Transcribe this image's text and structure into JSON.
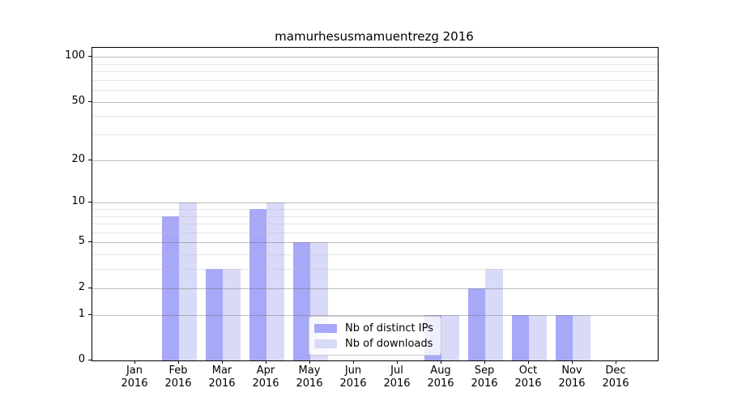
{
  "colors": {
    "distinct_ips_bar": "#a8a8f8",
    "downloads_bar": "#d9d9f8",
    "axis": "#000000",
    "grid_major": "#c4c4c4",
    "grid_minor": "#ececec",
    "legend_border": "#cccccc",
    "background": "#ffffff"
  },
  "chart_data": {
    "type": "bar",
    "title": "mamurhesusmamuentrezg 2016",
    "y_scale": "log1p",
    "ylim": [
      0,
      100
    ],
    "grid": "horizontal",
    "legend_position": "bottom-center",
    "categories": [
      "Jan",
      "Feb",
      "Mar",
      "Apr",
      "May",
      "Jun",
      "Jul",
      "Aug",
      "Sep",
      "Oct",
      "Nov",
      "Dec"
    ],
    "category_year": "2016",
    "y_ticks": [
      0,
      1,
      2,
      5,
      10,
      20,
      50,
      100
    ],
    "y_minor_ticks": [
      3,
      4,
      6,
      7,
      8,
      9,
      30,
      40,
      60,
      70,
      80,
      90
    ],
    "series": [
      {
        "name": "Nb of distinct IPs",
        "color": "#a8a8f8",
        "values": [
          0,
          8,
          3,
          9,
          5,
          0,
          0,
          1,
          2,
          1,
          1,
          0
        ]
      },
      {
        "name": "Nb of downloads",
        "color": "#d9d9f8",
        "values": [
          0,
          10,
          3,
          10,
          5,
          0,
          0,
          1,
          3,
          1,
          1,
          0
        ]
      }
    ]
  }
}
